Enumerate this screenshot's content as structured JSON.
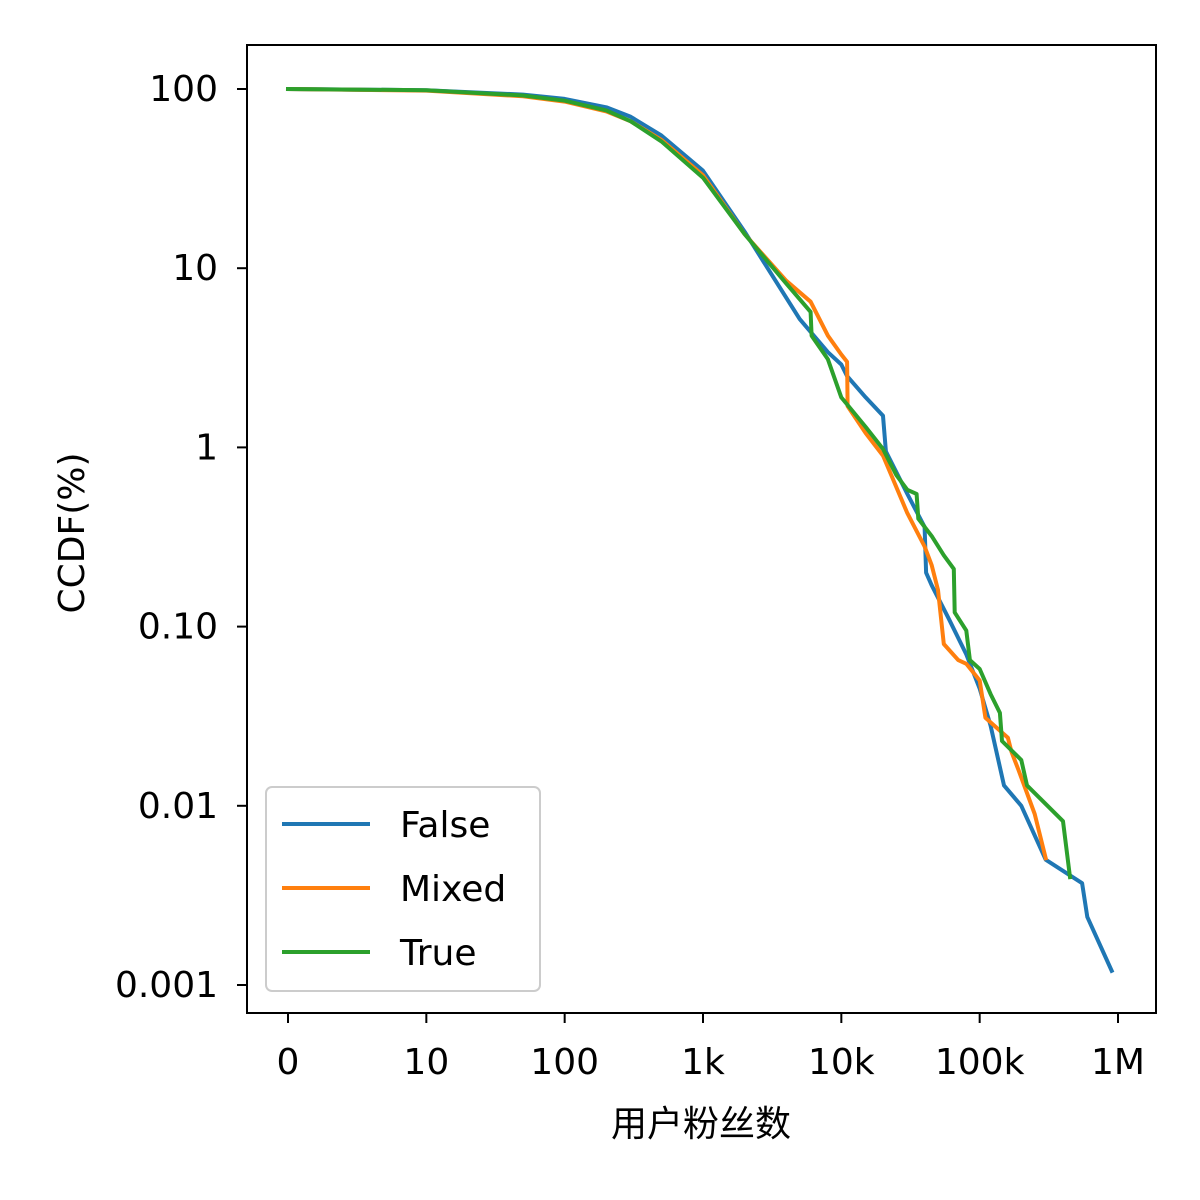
{
  "chart_data": {
    "type": "line",
    "xlabel": "用户粉丝数",
    "ylabel": "CCDF(%)",
    "xscale": "log",
    "yscale": "log",
    "xlim": [
      0.74,
      1600000
    ],
    "ylim": [
      0.00072,
      180
    ],
    "x_ticks": [
      {
        "value": 1,
        "label": "0"
      },
      {
        "value": 10,
        "label": "10"
      },
      {
        "value": 100,
        "label": "100"
      },
      {
        "value": 1000,
        "label": "1k"
      },
      {
        "value": 10000,
        "label": "10k"
      },
      {
        "value": 100000,
        "label": "100k"
      },
      {
        "value": 1000000,
        "label": "1M"
      }
    ],
    "y_ticks": [
      {
        "value": 100,
        "label": "100"
      },
      {
        "value": 10,
        "label": "10"
      },
      {
        "value": 1,
        "label": "1"
      },
      {
        "value": 0.1,
        "label": "0.10"
      },
      {
        "value": 0.01,
        "label": "0.01"
      },
      {
        "value": 0.001,
        "label": "0.001"
      }
    ],
    "grid": false,
    "legend_position": "lower-left",
    "series": [
      {
        "name": "False",
        "color": "#1f77b4",
        "points": [
          [
            1,
            100
          ],
          [
            10,
            98.5
          ],
          [
            50,
            93
          ],
          [
            100,
            88
          ],
          [
            200,
            79
          ],
          [
            300,
            70
          ],
          [
            500,
            55
          ],
          [
            1000,
            35
          ],
          [
            2000,
            16
          ],
          [
            5000,
            5.2
          ],
          [
            8000,
            3.4
          ],
          [
            10000,
            2.9
          ],
          [
            11000,
            2.5
          ],
          [
            15000,
            1.9
          ],
          [
            20000,
            1.5
          ],
          [
            21000,
            0.95
          ],
          [
            30000,
            0.55
          ],
          [
            40000,
            0.36
          ],
          [
            41000,
            0.2
          ],
          [
            45000,
            0.17
          ],
          [
            60000,
            0.11
          ],
          [
            80000,
            0.07
          ],
          [
            100000,
            0.045
          ],
          [
            120000,
            0.028
          ],
          [
            150000,
            0.013
          ],
          [
            200000,
            0.01
          ],
          [
            300000,
            0.005
          ],
          [
            550000,
            0.0037
          ],
          [
            600000,
            0.0024
          ],
          [
            900000,
            0.0012
          ]
        ]
      },
      {
        "name": "Mixed",
        "color": "#ff7f0e",
        "points": [
          [
            1,
            100
          ],
          [
            10,
            98
          ],
          [
            50,
            91
          ],
          [
            100,
            85
          ],
          [
            200,
            75
          ],
          [
            300,
            66
          ],
          [
            500,
            52
          ],
          [
            1000,
            33
          ],
          [
            2000,
            15.5
          ],
          [
            4000,
            8.5
          ],
          [
            6000,
            6.5
          ],
          [
            8000,
            4.2
          ],
          [
            10000,
            3.3
          ],
          [
            11000,
            3.0
          ],
          [
            11100,
            1.7
          ],
          [
            15000,
            1.2
          ],
          [
            20000,
            0.9
          ],
          [
            30000,
            0.43
          ],
          [
            40000,
            0.28
          ],
          [
            45000,
            0.22
          ],
          [
            50000,
            0.16
          ],
          [
            55000,
            0.08
          ],
          [
            70000,
            0.065
          ],
          [
            80000,
            0.062
          ],
          [
            100000,
            0.05
          ],
          [
            110000,
            0.031
          ],
          [
            160000,
            0.024
          ],
          [
            170000,
            0.02
          ],
          [
            190000,
            0.016
          ],
          [
            250000,
            0.009
          ],
          [
            300000,
            0.0051
          ]
        ]
      },
      {
        "name": "True",
        "color": "#2ca02c",
        "points": [
          [
            1,
            100
          ],
          [
            10,
            98.5
          ],
          [
            50,
            92
          ],
          [
            100,
            86
          ],
          [
            200,
            76
          ],
          [
            300,
            66
          ],
          [
            500,
            51
          ],
          [
            1000,
            32
          ],
          [
            2000,
            15.5
          ],
          [
            4000,
            8.2
          ],
          [
            6000,
            5.7
          ],
          [
            6100,
            4.2
          ],
          [
            8000,
            3.1
          ],
          [
            10000,
            1.9
          ],
          [
            15000,
            1.3
          ],
          [
            20000,
            0.98
          ],
          [
            25000,
            0.7
          ],
          [
            30000,
            0.58
          ],
          [
            35000,
            0.55
          ],
          [
            36000,
            0.4
          ],
          [
            45000,
            0.32
          ],
          [
            55000,
            0.25
          ],
          [
            65000,
            0.21
          ],
          [
            66000,
            0.12
          ],
          [
            80000,
            0.095
          ],
          [
            85000,
            0.065
          ],
          [
            100000,
            0.058
          ],
          [
            120000,
            0.042
          ],
          [
            140000,
            0.033
          ],
          [
            145000,
            0.023
          ],
          [
            200000,
            0.018
          ],
          [
            220000,
            0.013
          ],
          [
            400000,
            0.0082
          ],
          [
            450000,
            0.004
          ]
        ]
      }
    ]
  }
}
